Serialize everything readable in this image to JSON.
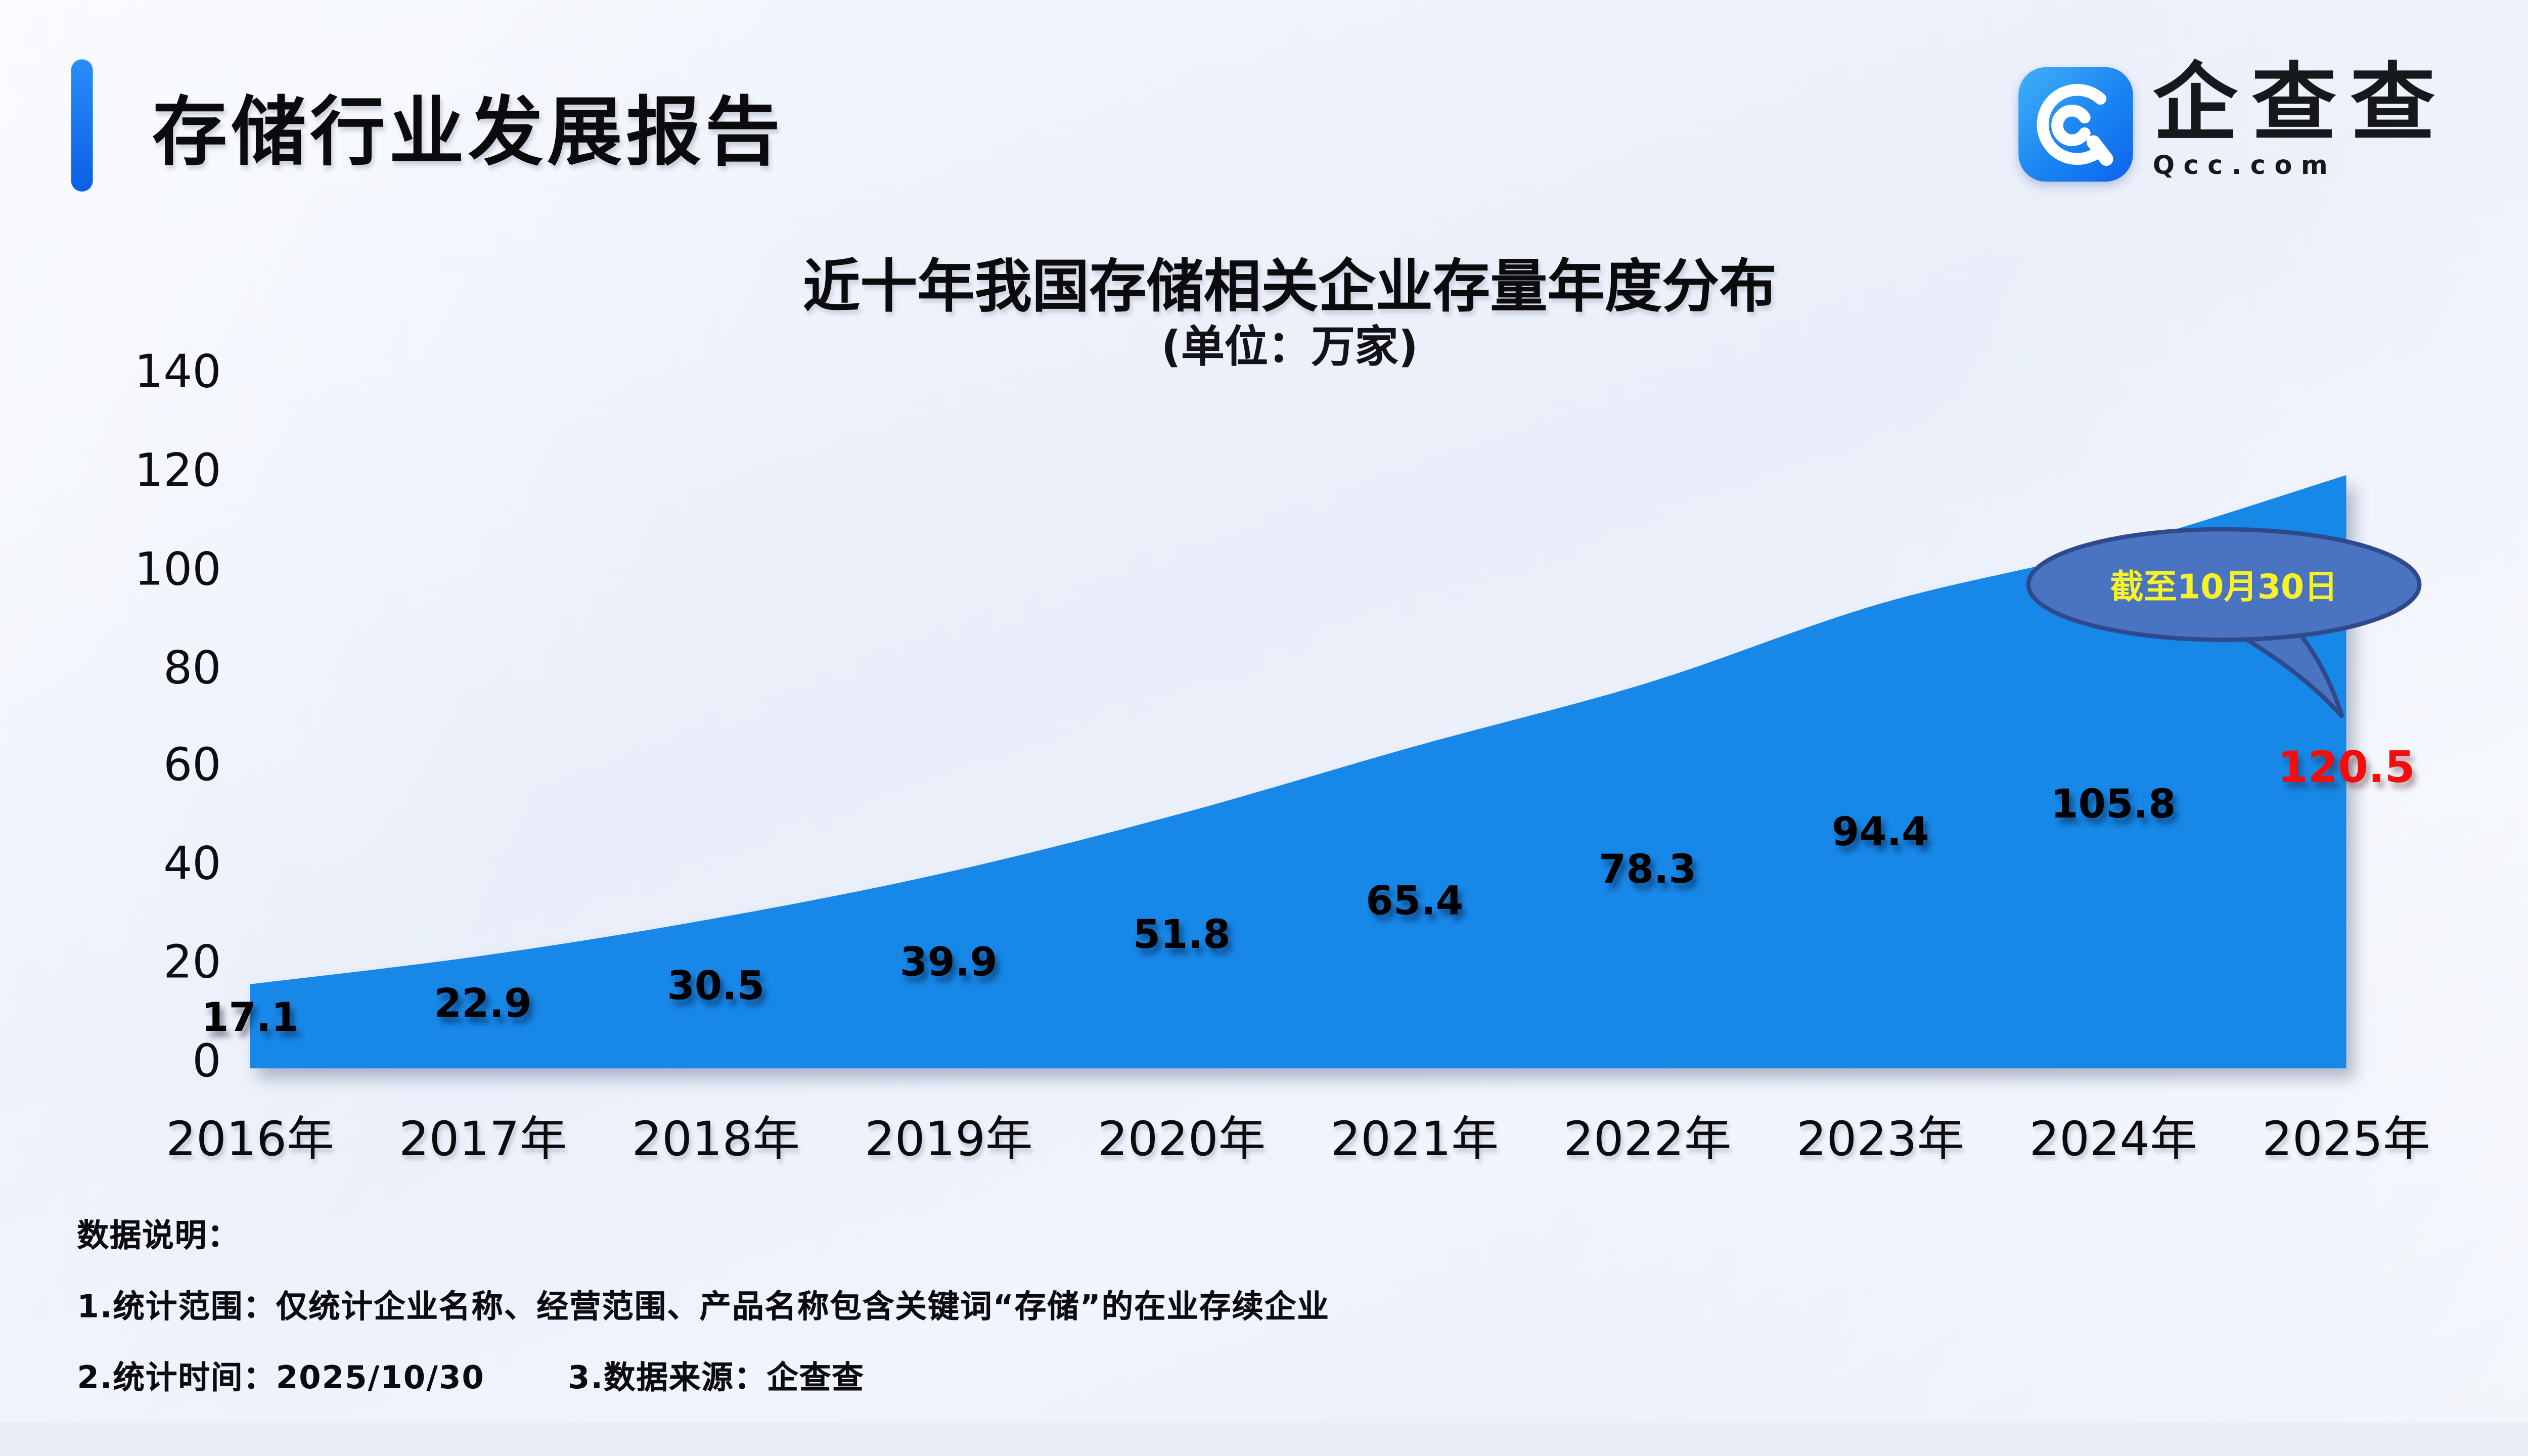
{
  "header": {
    "title": "存储行业发展报告"
  },
  "logo": {
    "name": "企查查",
    "domain": "Qcc.com",
    "icon": "qcc-spiral-q",
    "icon_color": "#1a84f2"
  },
  "chart": {
    "title": "近十年我国存储相关企业存量年度分布",
    "subtitle": "(单位：万家)",
    "callout": "截至10月30日"
  },
  "chart_data": {
    "type": "area",
    "title": "近十年我国存储相关企业存量年度分布",
    "unit": "万家",
    "categories": [
      "2016年",
      "2017年",
      "2018年",
      "2019年",
      "2020年",
      "2021年",
      "2022年",
      "2023年",
      "2024年",
      "2025年"
    ],
    "values": [
      17.1,
      22.9,
      30.5,
      39.9,
      51.8,
      65.4,
      78.3,
      94.4,
      105.8,
      120.5
    ],
    "yticks": [
      0,
      20,
      40,
      60,
      80,
      100,
      120,
      140
    ],
    "ylim": [
      0,
      140
    ],
    "xlabel": "",
    "ylabel": "",
    "grid": false,
    "legend": "none",
    "annotation": {
      "text": "截至10月30日",
      "applies_to": "2025年",
      "highlight_value": 120.5
    },
    "colors": {
      "area": "#1787E8",
      "value_label": "#000000",
      "highlight_label": "#F50D0D",
      "callout_fill": "#4A73C2",
      "callout_stroke": "#2E4A8C",
      "callout_text": "#F7F327"
    }
  },
  "notes": {
    "label": "数据说明：",
    "line1": "1.统计范围：仅统计企业名称、经营范围、产品名称包含关键词“存储”的在业存续企业",
    "line2a": "2.统计时间：2025/10/30",
    "line2b": "3.数据来源：企查查"
  }
}
